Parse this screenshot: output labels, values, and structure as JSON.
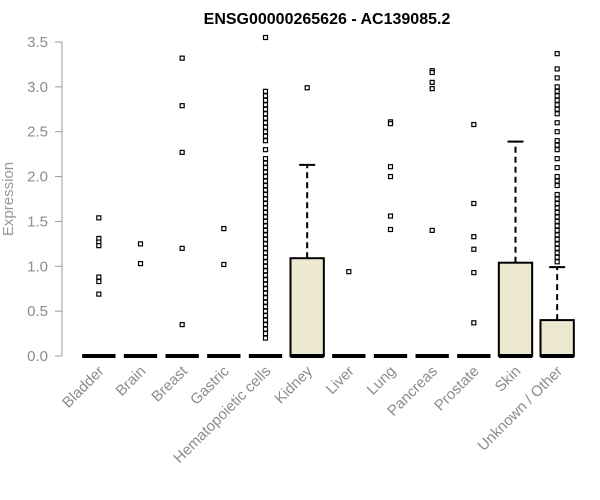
{
  "chart_data": {
    "type": "box",
    "title": "ENSG00000265626 - AC139085.2",
    "xlabel": "",
    "ylabel": "Expression",
    "ylim": [
      0,
      3.55
    ],
    "yticks": [
      "0.0",
      "0.5",
      "1.0",
      "1.5",
      "2.0",
      "2.5",
      "3.0",
      "3.5"
    ],
    "grid": false,
    "box_color": "#ede8d0",
    "categories": [
      "Bladder",
      "Brain",
      "Breast",
      "Gastric",
      "Hematopoietic cells",
      "Kidney",
      "Liver",
      "Lung",
      "Pancreas",
      "Prostate",
      "Skin",
      "Unknown / Other"
    ],
    "boxes": [
      {
        "name": "Bladder",
        "q1": 0,
        "median": 0,
        "q3": 0,
        "whisker_low": 0,
        "whisker_high": 0,
        "outliers": [
          1.54,
          1.31,
          1.27,
          1.23,
          0.88,
          0.83,
          0.69
        ]
      },
      {
        "name": "Brain",
        "q1": 0,
        "median": 0,
        "q3": 0,
        "whisker_low": 0,
        "whisker_high": 0,
        "outliers": [
          1.25,
          1.03
        ]
      },
      {
        "name": "Breast",
        "q1": 0,
        "median": 0,
        "q3": 0,
        "whisker_low": 0,
        "whisker_high": 0,
        "outliers": [
          3.32,
          2.79,
          2.27,
          1.2,
          0.35
        ]
      },
      {
        "name": "Gastric",
        "q1": 0,
        "median": 0,
        "q3": 0,
        "whisker_low": 0,
        "whisker_high": 0,
        "outliers": [
          1.42,
          1.02
        ]
      },
      {
        "name": "Hematopoietic cells",
        "q1": 0,
        "median": 0,
        "q3": 0,
        "whisker_low": 0,
        "whisker_high": 0,
        "outliers": [
          3.55,
          2.95,
          2.9,
          2.85,
          2.8,
          2.75,
          2.7,
          2.65,
          2.6,
          2.55,
          2.5,
          2.45,
          2.4,
          2.3,
          2.2,
          2.15,
          2.1,
          2.05,
          2.0,
          1.95,
          1.9,
          1.85,
          1.8,
          1.75,
          1.7,
          1.65,
          1.6,
          1.55,
          1.5,
          1.45,
          1.4,
          1.35,
          1.3,
          1.25,
          1.2,
          1.15,
          1.1,
          1.05,
          1.0,
          0.95,
          0.9,
          0.85,
          0.8,
          0.75,
          0.7,
          0.65,
          0.6,
          0.55,
          0.5,
          0.45,
          0.4,
          0.35,
          0.3,
          0.25,
          0.2
        ]
      },
      {
        "name": "Kidney",
        "q1": 0,
        "median": 0,
        "q3": 1.09,
        "whisker_low": 0,
        "whisker_high": 2.13,
        "outliers": [
          2.99
        ]
      },
      {
        "name": "Liver",
        "q1": 0,
        "median": 0,
        "q3": 0,
        "whisker_low": 0,
        "whisker_high": 0,
        "outliers": [
          0.94
        ]
      },
      {
        "name": "Lung",
        "q1": 0,
        "median": 0,
        "q3": 0,
        "whisker_low": 0,
        "whisker_high": 0,
        "outliers": [
          2.61,
          2.59,
          2.11,
          2.0,
          1.56,
          1.41
        ]
      },
      {
        "name": "Pancreas",
        "q1": 0,
        "median": 0,
        "q3": 0,
        "whisker_low": 0,
        "whisker_high": 0,
        "outliers": [
          3.18,
          3.16,
          3.05,
          2.98,
          1.4
        ]
      },
      {
        "name": "Prostate",
        "q1": 0,
        "median": 0,
        "q3": 0,
        "whisker_low": 0,
        "whisker_high": 0,
        "outliers": [
          2.58,
          1.7,
          1.33,
          1.19,
          0.93,
          0.37
        ]
      },
      {
        "name": "Skin",
        "q1": 0,
        "median": 0,
        "q3": 1.04,
        "whisker_low": 0,
        "whisker_high": 2.39,
        "outliers": []
      },
      {
        "name": "Unknown / Other",
        "q1": 0,
        "median": 0,
        "q3": 0.4,
        "whisker_low": 0,
        "whisker_high": 0.99,
        "outliers": [
          3.37,
          3.2,
          3.1,
          3.0,
          2.95,
          2.9,
          2.85,
          2.8,
          2.75,
          2.7,
          2.6,
          2.5,
          2.4,
          2.35,
          2.3,
          2.2,
          2.1,
          2.0,
          1.95,
          1.9,
          1.8,
          1.75,
          1.7,
          1.65,
          1.6,
          1.55,
          1.5,
          1.45,
          1.4,
          1.35,
          1.3,
          1.25,
          1.2,
          1.15,
          1.1,
          1.05
        ]
      }
    ]
  }
}
